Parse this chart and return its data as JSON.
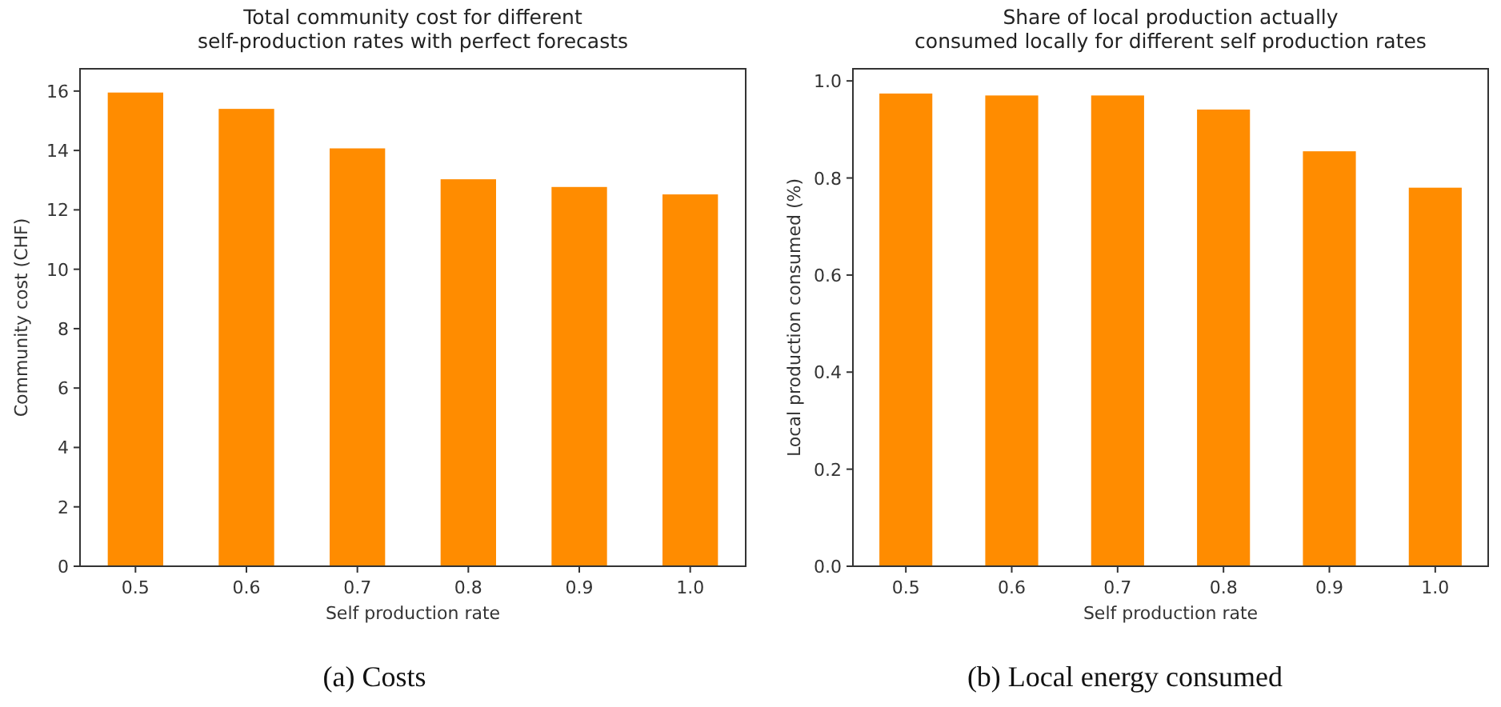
{
  "chart_data": [
    {
      "type": "bar",
      "title": "Total community cost for different\nself-production rates with perfect forecasts",
      "xlabel": "Self production rate",
      "ylabel": "Community cost (CHF)",
      "categories": [
        "0.5",
        "0.6",
        "0.7",
        "0.8",
        "0.9",
        "1.0"
      ],
      "values": [
        15.95,
        15.4,
        14.07,
        13.03,
        12.77,
        12.52
      ],
      "color": "#ff8c00",
      "ylim": [
        0,
        16.75
      ],
      "yticks": [
        0,
        2,
        4,
        6,
        8,
        10,
        12,
        14,
        16
      ],
      "annotations": [
        "(a) Costs"
      ]
    },
    {
      "type": "bar",
      "title": "Share of local production actually\nconsumed locally for different self production rates",
      "xlabel": "Self production rate",
      "ylabel": "Local production consumed (%)",
      "categories": [
        "0.5",
        "0.6",
        "0.7",
        "0.8",
        "0.9",
        "1.0"
      ],
      "values": [
        0.974,
        0.97,
        0.97,
        0.941,
        0.855,
        0.78
      ],
      "color": "#ff8c00",
      "ylim": [
        0,
        1.025
      ],
      "yticks": [
        {
          "value": 0,
          "label": "0.0"
        },
        0.2,
        0.4,
        0.6,
        0.8,
        {
          "value": 1,
          "label": "1.0"
        }
      ],
      "annotations": [
        "(b) Local energy consumed"
      ]
    }
  ]
}
